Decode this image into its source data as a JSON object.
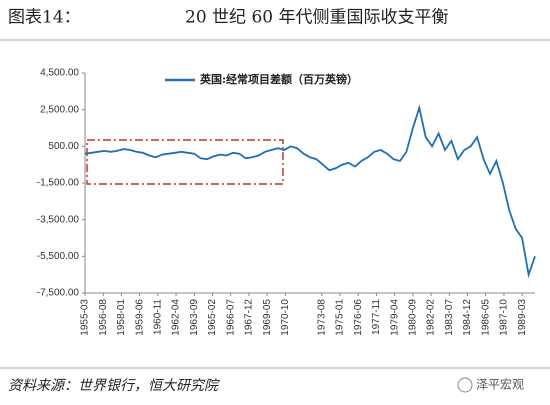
{
  "header": {
    "label": "图表14：",
    "title": "20 世纪 60 年代侧重国际收支平衡"
  },
  "chart_data": {
    "type": "line",
    "series": [
      {
        "name": "英国:经常项目差额（百万英镑）",
        "color": "#1f6fb5",
        "values": [
          100,
          150,
          200,
          250,
          200,
          250,
          350,
          300,
          200,
          150,
          0,
          -100,
          50,
          100,
          150,
          200,
          150,
          100,
          -150,
          -200,
          -50,
          50,
          0,
          150,
          100,
          -150,
          -100,
          0,
          200,
          300,
          400,
          300,
          500,
          400,
          100,
          -100,
          -200,
          -500,
          -800,
          -700,
          -500,
          -400,
          -600,
          -300,
          -100,
          200,
          300,
          100,
          -200,
          -300,
          200,
          1500,
          2600,
          1000,
          500,
          1200,
          300,
          800,
          -200,
          300,
          500,
          1000,
          -200,
          -1000,
          -300,
          -1500,
          -3000,
          -4000,
          -4500,
          -6500,
          -5500
        ]
      }
    ],
    "x": [
      "1955-03",
      "1955-09",
      "1956-03",
      "1956-09",
      "1957-03",
      "1957-09",
      "1958-03",
      "1958-09",
      "1959-03",
      "1959-09",
      "1960-03",
      "1960-09",
      "1961-03",
      "1961-09",
      "1962-03",
      "1962-09",
      "1963-03",
      "1963-09",
      "1964-03",
      "1964-09",
      "1965-03",
      "1965-09",
      "1966-03",
      "1966-09",
      "1967-03",
      "1967-09",
      "1968-03",
      "1968-09",
      "1969-03",
      "1969-09",
      "1970-03",
      "1970-09",
      "1971-03",
      "1971-09",
      "1972-03",
      "1972-09",
      "1973-03",
      "1973-09",
      "1974-03",
      "1974-09",
      "1975-03",
      "1975-09",
      "1976-03",
      "1976-09",
      "1977-03",
      "1977-09",
      "1978-03",
      "1978-09",
      "1979-03",
      "1979-09",
      "1980-03",
      "1980-09",
      "1981-03",
      "1981-09",
      "1982-03",
      "1982-09",
      "1983-03",
      "1983-09",
      "1984-03",
      "1984-09",
      "1985-03",
      "1985-09",
      "1986-03",
      "1986-09",
      "1987-03",
      "1987-09",
      "1988-03",
      "1988-09",
      "1989-03",
      "1989-09",
      "1990-03"
    ],
    "xlim": [
      "1955-03",
      "1990-03"
    ],
    "xticks": [
      "1955-03",
      "1956-08",
      "1958-01",
      "1959-06",
      "1960-11",
      "1962-04",
      "1963-09",
      "1965-02",
      "1966-07",
      "1967-12",
      "1969-05",
      "1970-10",
      "1973-08",
      "1975-01",
      "1976-06",
      "1977-11",
      "1979-04",
      "1980-09",
      "1982-02",
      "1983-07",
      "1984-12",
      "1986-05",
      "1987-10",
      "1989-03"
    ],
    "ylim": [
      -7500,
      4500
    ],
    "yticks": [
      {
        "value": 4500,
        "label": "4,500.00"
      },
      {
        "value": 2500,
        "label": "2,500.00"
      },
      {
        "value": 500,
        "label": "500.00"
      },
      {
        "value": -1500,
        "label": "-1,500.00"
      },
      {
        "value": -3500,
        "label": "-3,500.00"
      },
      {
        "value": -5500,
        "label": "-5,500.00"
      },
      {
        "value": -7500,
        "label": "-7,500.00"
      }
    ]
  },
  "footer": {
    "source": "资料来源：世界银行，恒大研究院",
    "logo": "泽平宏观"
  }
}
